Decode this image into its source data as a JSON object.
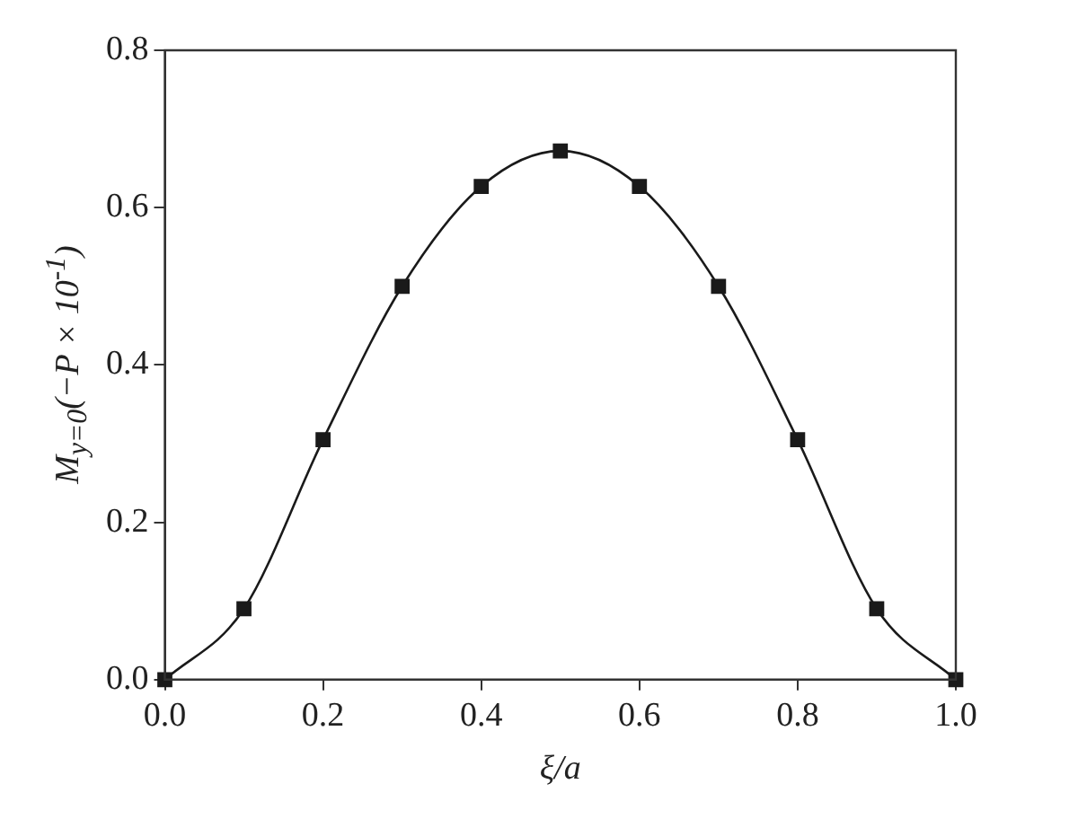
{
  "chart_data": {
    "type": "line",
    "xlabel": "ξ/a",
    "ylabel": "M$_{y=0}$(−P × 10$^{-1}$)",
    "x": [
      0,
      0.1,
      0.2,
      0.3,
      0.4,
      0.5,
      0.6,
      0.7,
      0.8,
      0.9,
      1.0
    ],
    "series": [
      {
        "color": "#1a1a1a",
        "values": [
          0,
          0.09,
          0.305,
          0.5,
          0.627,
          0.672,
          0.627,
          0.5,
          0.305,
          0.09,
          0
        ]
      }
    ],
    "xlim": [
      0,
      1
    ],
    "xticks": [
      {
        "value": 0,
        "label": "0.0"
      },
      0.2,
      0.4,
      0.6,
      0.8,
      {
        "value": 1,
        "label": "1.0"
      }
    ],
    "ylim": [
      0,
      0.8
    ],
    "yticks": [
      {
        "value": 0,
        "label": "0.0"
      },
      0.2,
      0.4,
      0.6,
      0.8
    ],
    "grid": false,
    "legend": false,
    "marker": "square",
    "line_style": "solid"
  }
}
